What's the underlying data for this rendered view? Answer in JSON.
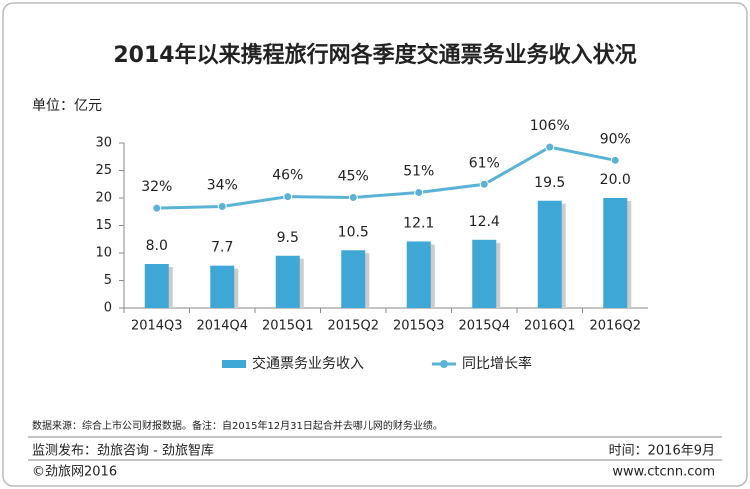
{
  "chart_data": {
    "type": "bar",
    "title": "2014年以来携程旅行网各季度交通票务业务收入状况",
    "unit_label": "单位：亿元",
    "categories": [
      "2014Q3",
      "2014Q4",
      "2015Q1",
      "2015Q2",
      "2015Q3",
      "2015Q4",
      "2016Q1",
      "2016Q2"
    ],
    "series": [
      {
        "name": "交通票务业务收入",
        "type": "bar",
        "color": "#3fa7d6",
        "values": [
          8.0,
          7.7,
          9.5,
          10.5,
          12.1,
          12.4,
          19.5,
          20.0
        ],
        "value_labels": [
          "8.0",
          "7.7",
          "9.5",
          "10.5",
          "12.1",
          "12.4",
          "19.5",
          "20.0"
        ]
      },
      {
        "name": "同比增长率",
        "type": "line",
        "axis": "y2",
        "color": "#5ab3d6",
        "values": [
          32,
          34,
          46,
          45,
          51,
          61,
          106,
          90
        ],
        "value_labels": [
          "32%",
          "34%",
          "46%",
          "45%",
          "51%",
          "61%",
          "106%",
          "90%"
        ]
      }
    ],
    "ylim": [
      0,
      30
    ],
    "yticks": [
      0,
      5,
      10,
      15,
      20,
      25,
      30
    ],
    "y2lim": [
      -89,
      111
    ],
    "grid": false,
    "legend": "bottom"
  },
  "source": "数据来源：综合上市公司财报数据。备注：自2015年12月31日起合并去哪儿网的财务业绩。",
  "footer": {
    "publisher": "监测发布：劲旅咨询 - 劲旅智库",
    "date": "时间：2016年9月",
    "copyright": "©劲旅网2016",
    "website": "www.ctcnn.com"
  }
}
